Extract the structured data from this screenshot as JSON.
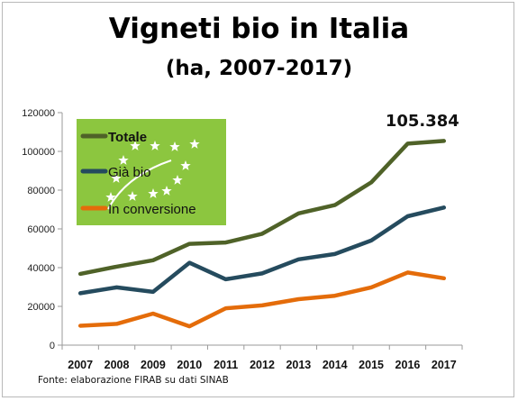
{
  "title": "Vigneti bio in Italia",
  "subtitle": "(ha, 2007-2017)",
  "source": "Fonte: elaborazione FIRAB su dati SINAB",
  "logo": {
    "icon": "eu-organic-leaf-icon",
    "background": "#8cc63f"
  },
  "chart_data": {
    "type": "line",
    "x": [
      "2007",
      "2008",
      "2009",
      "2010",
      "2011",
      "2012",
      "2013",
      "2014",
      "2015",
      "2016",
      "2017"
    ],
    "ylim": [
      0,
      120000
    ],
    "yticks": [
      0,
      20000,
      40000,
      60000,
      80000,
      100000,
      120000
    ],
    "grid": false,
    "legend_position": "top-left",
    "series": [
      {
        "name": "Totale",
        "color": "#4f6228",
        "values": [
          36800,
          40500,
          43800,
          52300,
          53000,
          57500,
          68000,
          72300,
          84000,
          104000,
          105384
        ]
      },
      {
        "name": "Già bio",
        "color": "#254b5e",
        "values": [
          26800,
          29800,
          27500,
          42500,
          34000,
          37000,
          44300,
          47000,
          54000,
          66500,
          71000
        ]
      },
      {
        "name": "In conversione",
        "color": "#e46c0a",
        "values": [
          10000,
          11000,
          16300,
          9700,
          19000,
          20500,
          23700,
          25500,
          29800,
          37500,
          34500
        ]
      }
    ],
    "annotation": {
      "text": "105.384",
      "x": "2017",
      "y": 105384
    }
  }
}
